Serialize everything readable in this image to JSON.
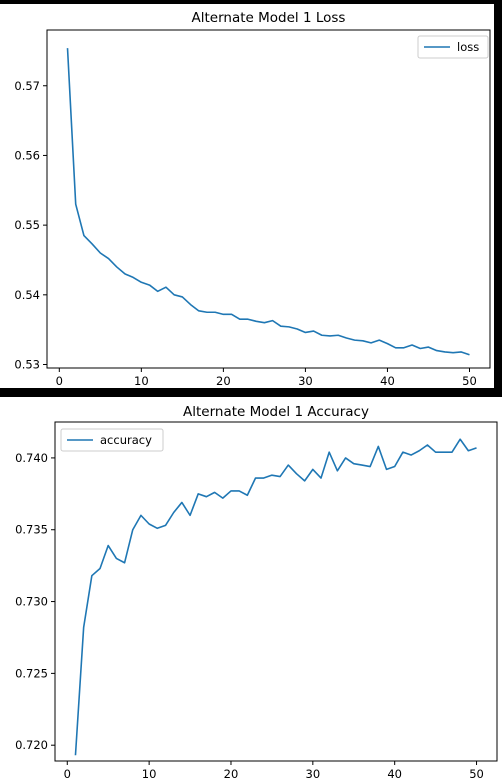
{
  "chart_data": [
    {
      "type": "line",
      "title": "Alternate Model 1 Loss",
      "xlabel": "",
      "ylabel": "",
      "xlim": [
        -1.5,
        52.5
      ],
      "ylim": [
        0.5295,
        0.578
      ],
      "xticks": [
        0,
        10,
        20,
        30,
        40,
        50
      ],
      "yticks": [
        0.53,
        0.54,
        0.55,
        0.56,
        0.57
      ],
      "xtick_labels": [
        "0",
        "10",
        "20",
        "30",
        "40",
        "50"
      ],
      "ytick_labels": [
        "0.53",
        "0.54",
        "0.55",
        "0.56",
        "0.57"
      ],
      "grid": false,
      "legend": "top-right",
      "x": [
        1,
        2,
        3,
        4,
        5,
        6,
        7,
        8,
        9,
        10,
        11,
        12,
        13,
        14,
        15,
        16,
        17,
        18,
        19,
        20,
        21,
        22,
        23,
        24,
        25,
        26,
        27,
        28,
        29,
        30,
        31,
        32,
        33,
        34,
        35,
        36,
        37,
        38,
        39,
        40,
        41,
        42,
        43,
        44,
        45,
        46,
        47,
        48,
        49,
        50
      ],
      "series": [
        {
          "name": "loss",
          "color": "#1f77b4",
          "values": [
            0.5754,
            0.553,
            0.5485,
            0.5473,
            0.546,
            0.5452,
            0.544,
            0.543,
            0.5425,
            0.5418,
            0.5414,
            0.5405,
            0.5411,
            0.54,
            0.5397,
            0.5386,
            0.5377,
            0.5375,
            0.5375,
            0.5372,
            0.5372,
            0.5365,
            0.5365,
            0.5362,
            0.536,
            0.5363,
            0.5355,
            0.5354,
            0.5351,
            0.5346,
            0.5348,
            0.5342,
            0.5341,
            0.5342,
            0.5338,
            0.5335,
            0.5334,
            0.5331,
            0.5335,
            0.533,
            0.5324,
            0.5324,
            0.5328,
            0.5323,
            0.5325,
            0.532,
            0.5318,
            0.5317,
            0.5318,
            0.5314
          ]
        }
      ]
    },
    {
      "type": "line",
      "title": "Alternate Model 1 Accuracy",
      "xlabel": "",
      "ylabel": "",
      "xlim": [
        -1.5,
        52.5
      ],
      "ylim": [
        0.7189,
        0.7425
      ],
      "xticks": [
        0,
        10,
        20,
        30,
        40,
        50
      ],
      "yticks": [
        0.72,
        0.725,
        0.73,
        0.735,
        0.74
      ],
      "xtick_labels": [
        "0",
        "10",
        "20",
        "30",
        "40",
        "50"
      ],
      "ytick_labels": [
        "0.720",
        "0.725",
        "0.730",
        "0.735",
        "0.740"
      ],
      "grid": false,
      "legend": "top-left",
      "x": [
        1,
        2,
        3,
        4,
        5,
        6,
        7,
        8,
        9,
        10,
        11,
        12,
        13,
        14,
        15,
        16,
        17,
        18,
        19,
        20,
        21,
        22,
        23,
        24,
        25,
        26,
        27,
        28,
        29,
        30,
        31,
        32,
        33,
        34,
        35,
        36,
        37,
        38,
        39,
        40,
        41,
        42,
        43,
        44,
        45,
        46,
        47,
        48,
        49,
        50
      ],
      "series": [
        {
          "name": "accuracy",
          "color": "#1f77b4",
          "values": [
            0.7193,
            0.7282,
            0.7318,
            0.7323,
            0.7339,
            0.733,
            0.7327,
            0.735,
            0.736,
            0.7354,
            0.7351,
            0.7353,
            0.7362,
            0.7369,
            0.736,
            0.7375,
            0.7373,
            0.7376,
            0.7372,
            0.7377,
            0.7377,
            0.7374,
            0.7386,
            0.7386,
            0.7388,
            0.7387,
            0.7395,
            0.7389,
            0.7384,
            0.7392,
            0.7386,
            0.7404,
            0.7391,
            0.74,
            0.7396,
            0.7395,
            0.7394,
            0.7408,
            0.7392,
            0.7394,
            0.7404,
            0.7402,
            0.7405,
            0.7409,
            0.7404,
            0.7404,
            0.7404,
            0.7413,
            0.7405,
            0.7407
          ]
        }
      ]
    }
  ]
}
